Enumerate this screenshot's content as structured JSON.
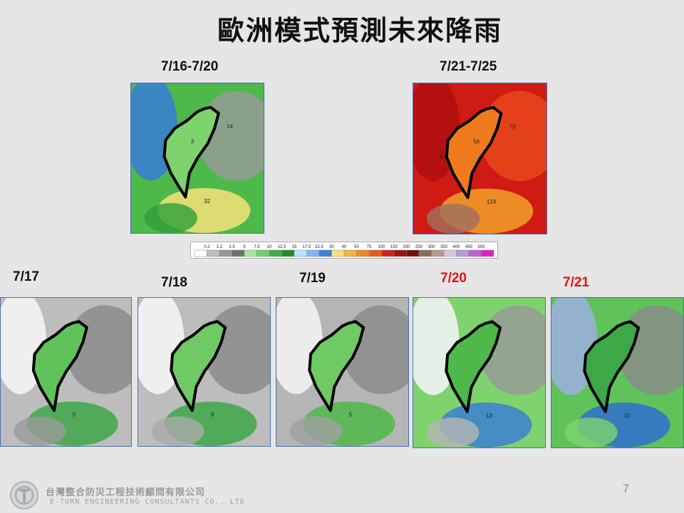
{
  "title": "歐洲模式預測未來降雨",
  "periods": [
    {
      "label": "7/16-7/20",
      "annotations": [
        "32",
        "14",
        "3"
      ]
    },
    {
      "label": "7/21-7/25",
      "annotations": [
        "124",
        "73",
        "56",
        "54"
      ]
    }
  ],
  "colorbar_labels": [
    0.2,
    1.2,
    2.5,
    5,
    7.5,
    10,
    12.5,
    15,
    17.5,
    22.5,
    30,
    40,
    50,
    75,
    100,
    150,
    200,
    250,
    300,
    350,
    400,
    450,
    500
  ],
  "days": [
    {
      "label": "7/17",
      "annotations": [
        "5"
      ]
    },
    {
      "label": "7/18",
      "annotations": [
        "9"
      ]
    },
    {
      "label": "7/19",
      "annotations": [
        "5"
      ]
    },
    {
      "label": "7/20",
      "annotations": [
        "13"
      ]
    },
    {
      "label": "7/21",
      "annotations": [
        "10"
      ]
    }
  ],
  "footer": {
    "company_zh": "台灣整合防災工程技術顧問有限公司",
    "company_en": "E-TURN ENGINEERING CONSULTANTS CO., LTD",
    "page": 7
  }
}
